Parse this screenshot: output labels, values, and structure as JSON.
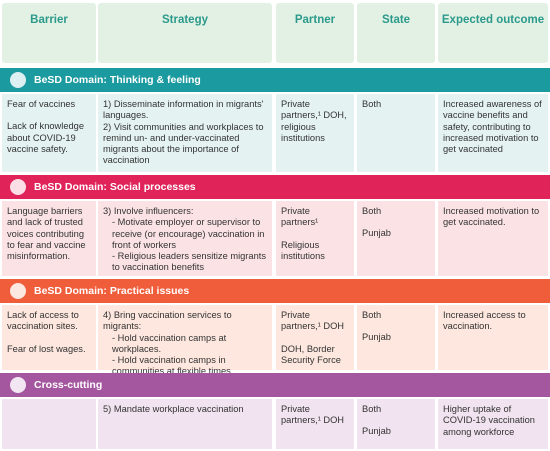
{
  "header": {
    "columns": [
      "Barrier",
      "Strategy",
      "Partner",
      "State",
      "Expected outcome"
    ]
  },
  "sections": [
    {
      "title": "BeSD Domain: Thinking & feeling",
      "color": "#1b9aa0",
      "background": "#e4f3f2",
      "cells": [
        [
          "Fear of vaccines",
          "Lack of knowledge about COVID-19 vaccine safety."
        ],
        [
          "1) Disseminate information in migrants' languages.",
          "2) Visit communities and workplaces to remind un- and under-vaccinated migrants about the importance of vaccination"
        ],
        [
          "Private partners,¹ DOH, religious institutions"
        ],
        [
          "Both"
        ],
        [
          "Increased awareness of vaccine benefits and safety, contributing to increased motivation to get vaccinated"
        ]
      ]
    },
    {
      "title": "BeSD Domain: Social processes",
      "color": "#e0245a",
      "background": "#fbe3e5",
      "cells": [
        [
          "Language barriers and lack of trusted voices contributing to fear and vaccine misinformation."
        ],
        [
          "3) Involve influencers:",
          "- Motivate employer or supervisor to receive (or encourage) vaccination in front of workers",
          "- Religious leaders sensitize migrants to vaccination benefits"
        ],
        [
          "Private partners¹",
          "Religious institutions"
        ],
        [
          "Both",
          "Punjab"
        ],
        [
          "Increased motivation to get vaccinated."
        ]
      ]
    },
    {
      "title": "BeSD Domain: Practical issues",
      "color": "#ef5d3b",
      "background": "#fde7de",
      "cells": [
        [
          "Lack of access to vaccination sites.",
          "Fear of lost wages."
        ],
        [
          "4) Bring vaccination services to migrants:",
          "- Hold vaccination camps at workplaces.",
          "- Hold vaccination camps in communities at flexible times"
        ],
        [
          "Private partners,¹ DOH",
          "DOH, Border Security Force"
        ],
        [
          "Both",
          "Punjab"
        ],
        [
          "Increased access to vaccination."
        ]
      ]
    },
    {
      "title": "Cross-cutting",
      "color": "#a4569f",
      "background": "#f1e4f0",
      "cells": [
        [],
        [
          "5) Mandate workplace vaccination"
        ],
        [
          "Private partners,¹ DOH"
        ],
        [
          "Both",
          "Punjab"
        ],
        [
          "Higher uptake of COVID-19 vaccination among workforce"
        ]
      ]
    }
  ]
}
